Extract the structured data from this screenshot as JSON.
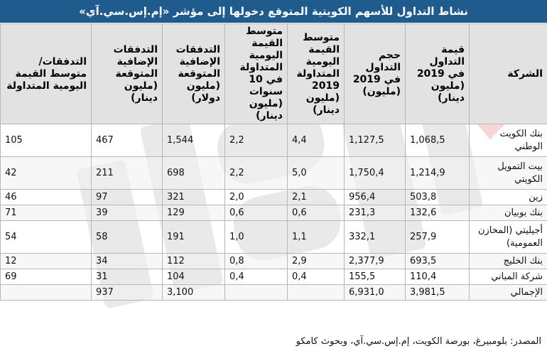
{
  "title": "نشاط التداول للأسهم الكويتية المتوقع دخولها إلى مؤشر «إم.إس.سي.آي»",
  "headers": [
    "الشركة",
    "قيمة التداول في 2019 (مليون دينار)",
    "حجم التداول في 2019 (مليون)",
    "متوسط القيمة اليومية المتداولة 2019 (مليون دينار)",
    "متوسط القيمة اليومية المتداولة في 10 سنوات (مليون دينار)",
    "التدفقات الإضافية المتوقعة (مليون دولار)",
    "التدفقات الإضافية المتوقعة (مليون دينار)",
    "التدفقات/ متوسط القيمة اليومية المتداولة"
  ],
  "rows": [
    {
      "company": "بنك الكويت الوطني",
      "value": "1,068,5",
      "volume": "1,127,5",
      "avg2019": "4,4",
      "avg10y": "2,2",
      "flows_usd": "1,544",
      "flows_kwd": "467",
      "ratio": "105"
    },
    {
      "company": "بيت التمويل الكويتي",
      "value": "1,214,9",
      "volume": "1,750,4",
      "avg2019": "5,0",
      "avg10y": "2,2",
      "flows_usd": "698",
      "flows_kwd": "211",
      "ratio": "42"
    },
    {
      "company": "زين",
      "value": "503,8",
      "volume": "956,4",
      "avg2019": "2,1",
      "avg10y": "2,0",
      "flows_usd": "321",
      "flows_kwd": "97",
      "ratio": "46"
    },
    {
      "company": "بنك بوبيان",
      "value": "132,6",
      "volume": "231,3",
      "avg2019": "0,6",
      "avg10y": "0,6",
      "flows_usd": "129",
      "flows_kwd": "39",
      "ratio": "71"
    },
    {
      "company": "أجيليتي (المخازن العمومية)",
      "value": "257,9",
      "volume": "332,1",
      "avg2019": "1,1",
      "avg10y": "1,0",
      "flows_usd": "191",
      "flows_kwd": "58",
      "ratio": "54"
    },
    {
      "company": "بنك الخليج",
      "value": "693,5",
      "volume": "2,377,9",
      "avg2019": "2,9",
      "avg10y": "0,8",
      "flows_usd": "112",
      "flows_kwd": "34",
      "ratio": "12"
    },
    {
      "company": "شركة المباني",
      "value": "110,4",
      "volume": "155,5",
      "avg2019": "0,4",
      "avg10y": "0,4",
      "flows_usd": "104",
      "flows_kwd": "31",
      "ratio": "69"
    },
    {
      "company": "الإجمالي",
      "value": "3,981,5",
      "volume": "6,931,0",
      "avg2019": "",
      "avg10y": "",
      "flows_usd": "3,100",
      "flows_kwd": "937",
      "ratio": ""
    }
  ],
  "source": "المصدر: بلومبيرغ، بورصة الكويت، إم.إس.سي.آي، وبحوث كامكو"
}
